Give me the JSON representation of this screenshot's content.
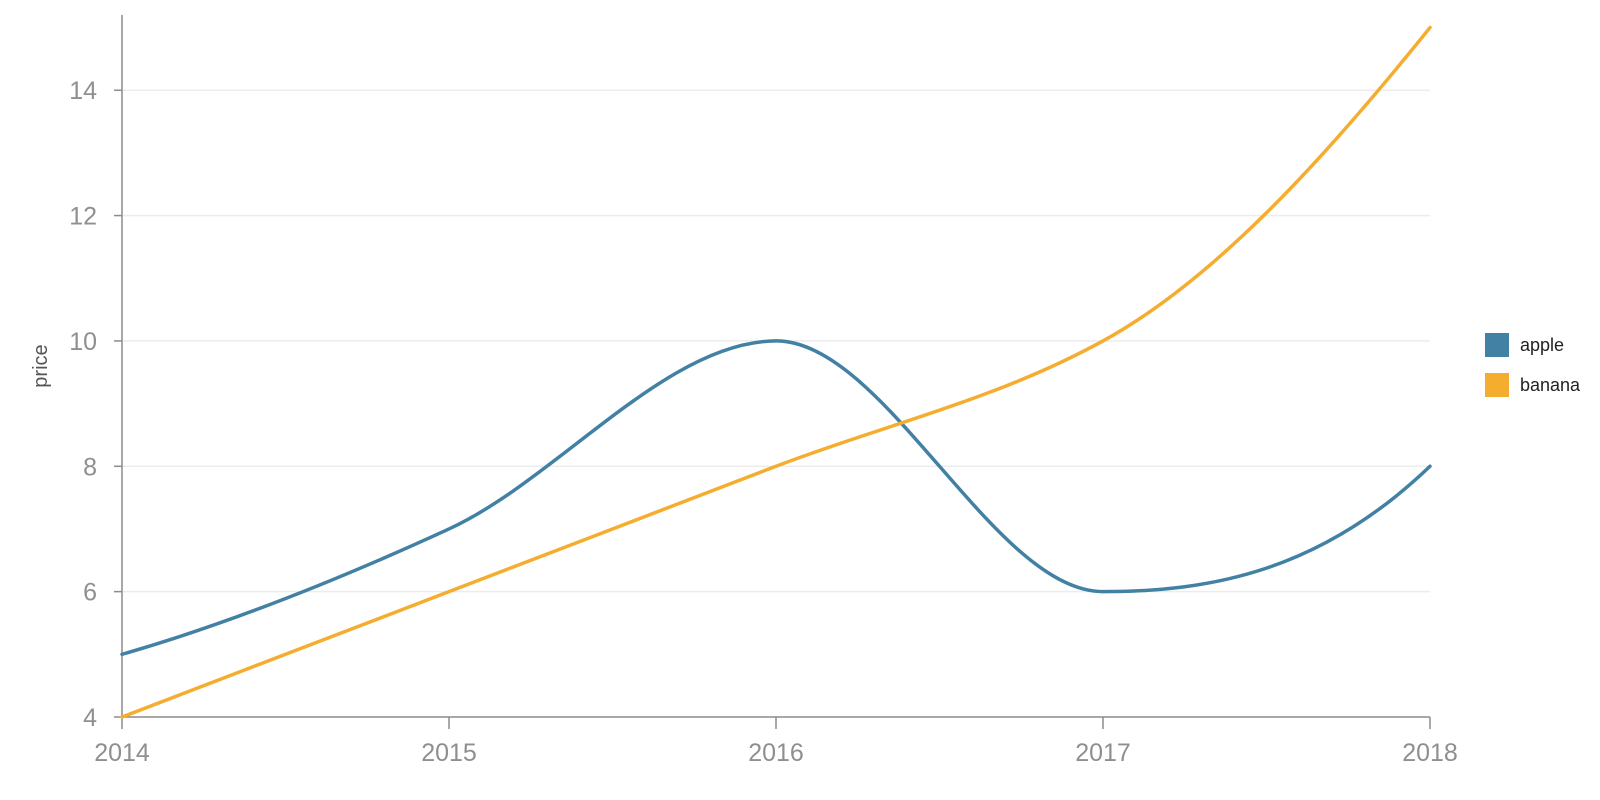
{
  "chart_data": {
    "type": "line",
    "title": "",
    "xlabel": "",
    "ylabel": "price",
    "x": [
      2014,
      2015,
      2016,
      2017,
      2018
    ],
    "x_tick_labels": [
      "2014",
      "2015",
      "2016",
      "2017",
      "2018"
    ],
    "y_ticks": [
      4,
      6,
      8,
      10,
      12,
      14
    ],
    "y_tick_labels": [
      "4",
      "6",
      "8",
      "10",
      "12",
      "14"
    ],
    "xlim": [
      2014,
      2018
    ],
    "ylim": [
      4,
      15.2
    ],
    "grid": "horizontal",
    "curve": "smooth",
    "legend_position": "right",
    "series": [
      {
        "name": "apple",
        "color": "#4281a4",
        "values": [
          5,
          7,
          10,
          6,
          8
        ]
      },
      {
        "name": "banana",
        "color": "#f5ad2f",
        "values": [
          4,
          6,
          8,
          10,
          15
        ]
      }
    ]
  }
}
